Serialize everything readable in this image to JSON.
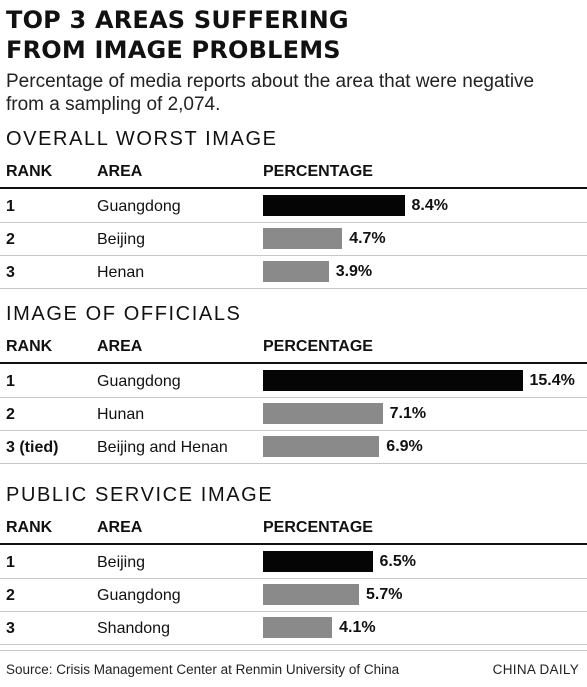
{
  "title_line1": "TOP 3 AREAS SUFFERING",
  "title_line2": "FROM IMAGE PROBLEMS",
  "subtitle_line1": "Percentage of media reports about the area that were negative",
  "subtitle_line2": "from a sampling of 2,074.",
  "headers": {
    "rank": "RANK",
    "area": "AREA",
    "percentage": "PERCENTAGE"
  },
  "colors": {
    "first_bar": "#050505",
    "other_bars": "#8a8a8a"
  },
  "chart_data": [
    {
      "type": "bar",
      "title": "OVERALL WORST IMAGE",
      "ranks": [
        "1",
        "2",
        "3"
      ],
      "categories": [
        "Guangdong",
        "Beijing",
        "Henan"
      ],
      "values": [
        8.4,
        4.7,
        3.9
      ],
      "labels": [
        "8.4%",
        "4.7%",
        "3.9%"
      ]
    },
    {
      "type": "bar",
      "title": "IMAGE OF OFFICIALS",
      "ranks": [
        "1",
        "2",
        "3 (tied)"
      ],
      "categories": [
        "Guangdong",
        "Hunan",
        "Beijing and Henan"
      ],
      "values": [
        15.4,
        7.1,
        6.9
      ],
      "labels": [
        "15.4%",
        "7.1%",
        "6.9%"
      ]
    },
    {
      "type": "bar",
      "title": "PUBLIC SERVICE IMAGE",
      "ranks": [
        "1",
        "2",
        "3"
      ],
      "categories": [
        "Beijing",
        "Guangdong",
        "Shandong"
      ],
      "values": [
        6.5,
        5.7,
        4.1
      ],
      "labels": [
        "6.5%",
        "5.7%",
        "4.1%"
      ]
    }
  ],
  "source": "Source:  Crisis Management Center at Renmin University of China",
  "credit": "CHINA DAILY"
}
